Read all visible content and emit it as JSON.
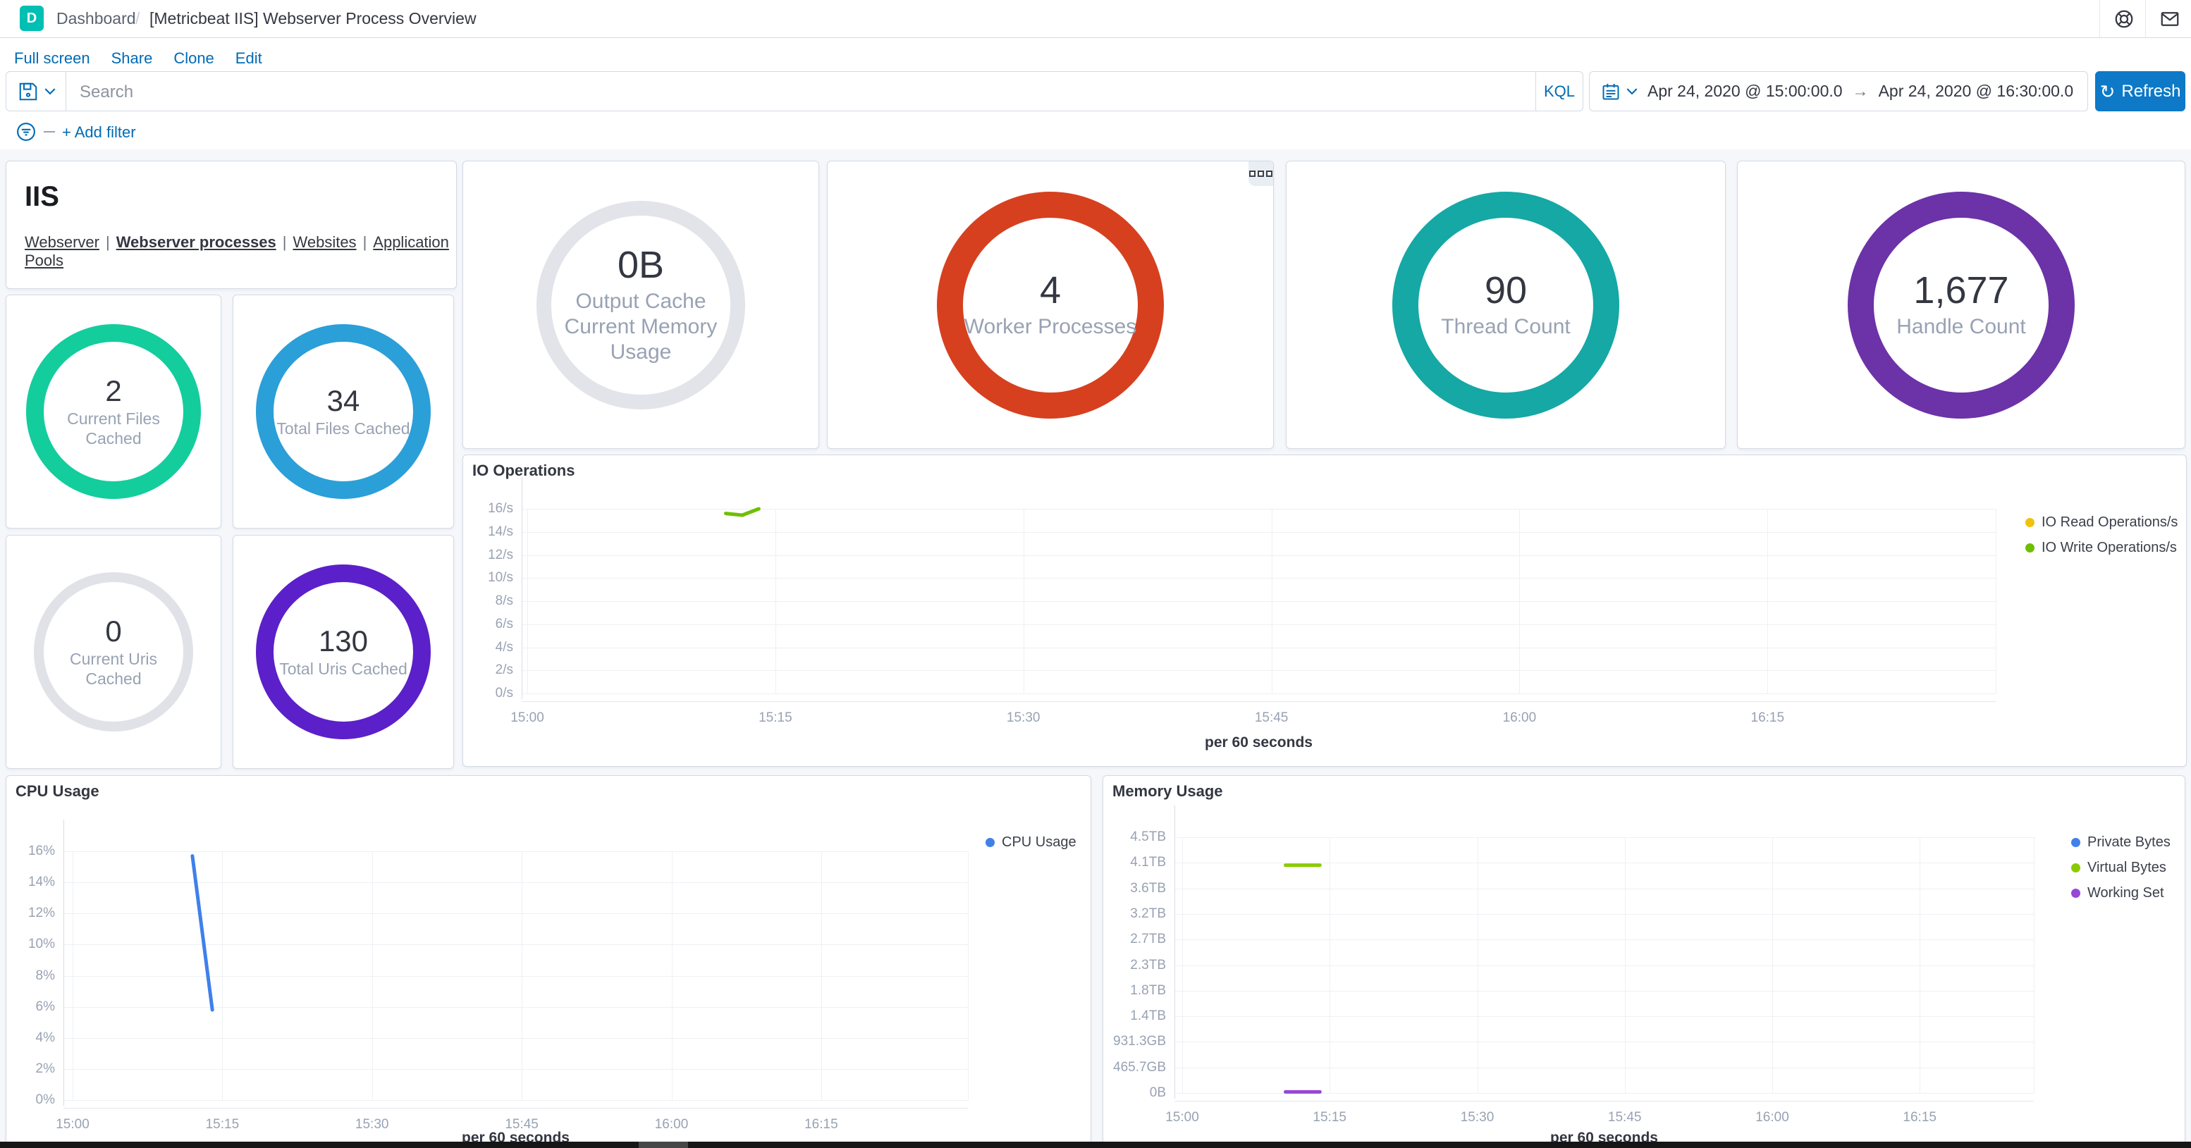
{
  "colors": {
    "primary": "#006BB4",
    "refresh_button": "#0d79c7",
    "logo_teal": "#00BFB3",
    "panel_border": "#D3DAE6",
    "page_background": "#F5F7FA"
  },
  "header": {
    "logo_letter": "D",
    "breadcrumb": "Dashboard",
    "breadcrumb_separator": "/",
    "page_title": "[Metricbeat IIS] Webserver Process Overview"
  },
  "toolbar": {
    "links": [
      "Full screen",
      "Share",
      "Clone",
      "Edit"
    ]
  },
  "query_bar": {
    "search_placeholder": "Search",
    "language_label": "KQL",
    "date_start": "Apr 24, 2020 @ 15:00:00.0",
    "date_arrow": "→",
    "date_end": "Apr 24, 2020 @ 16:30:00.0",
    "refresh_label": "Refresh",
    "add_filter_label": "+ Add filter"
  },
  "iis_panel": {
    "title": "IIS",
    "separator": "|",
    "links": [
      {
        "label": "Webserver",
        "current": false
      },
      {
        "label": "Webserver processes",
        "current": true
      },
      {
        "label": "Websites",
        "current": false
      },
      {
        "label": "Application Pools",
        "current": false
      }
    ]
  },
  "gauges": [
    {
      "id": "current-files-cached",
      "value": "2",
      "label": "Current Files Cached",
      "color": "#13cd9d"
    },
    {
      "id": "total-files-cached",
      "value": "34",
      "label": "Total Files Cached",
      "color": "#2b9fd8"
    },
    {
      "id": "current-uris-cached",
      "value": "0",
      "label": "Current Uris Cached",
      "color": "#e1e2e7"
    },
    {
      "id": "total-uris-cached",
      "value": "130",
      "label": "Total Uris Cached",
      "color": "#5b20c9"
    },
    {
      "id": "output-cache-current-memory-usage",
      "value": "0B",
      "label": "Output Cache Current Memory Usage",
      "color": "#e3e4e9"
    },
    {
      "id": "worker-processes",
      "value": "4",
      "label": "Worker Processes",
      "color": "#d6401f"
    },
    {
      "id": "thread-count",
      "value": "90",
      "label": "Thread Count",
      "color": "#15a8a5"
    },
    {
      "id": "handle-count",
      "value": "1,677",
      "label": "Handle Count",
      "color": "#6c32a7"
    }
  ],
  "chart_data": [
    {
      "type": "line",
      "title": "IO Operations",
      "xlabel": "per 60 seconds",
      "grid": true,
      "legend_position": "right",
      "x_axis": {
        "tick_labels": [
          "15:00",
          "15:15",
          "15:30",
          "15:45",
          "16:00",
          "16:15"
        ],
        "tick_minutes": [
          0,
          15,
          30,
          45,
          60,
          75
        ],
        "domain_minutes": [
          0,
          88.8
        ]
      },
      "y_axis": {
        "tick_labels": [
          "16/s",
          "14/s",
          "12/s",
          "10/s",
          "8/s",
          "6/s",
          "4/s",
          "2/s",
          "0/s"
        ],
        "top_value": 16,
        "bottom_value": 0
      },
      "legend": [
        {
          "label": "IO Read Operations/s",
          "color": "#f0c20c"
        },
        {
          "label": "IO Write Operations/s",
          "color": "#6fbf00"
        }
      ],
      "series": [
        {
          "name": "IO Read Operations/s",
          "color": "#f0c20c",
          "points": []
        },
        {
          "name": "IO Write Operations/s",
          "color": "#6fbf00",
          "points": [
            [
              12,
              15.6
            ],
            [
              13,
              15.45
            ],
            [
              14,
              16.0
            ]
          ]
        }
      ]
    },
    {
      "type": "line",
      "title": "CPU Usage",
      "xlabel": "per 60 seconds",
      "grid": true,
      "legend_position": "right",
      "x_axis": {
        "tick_labels": [
          "15:00",
          "15:15",
          "15:30",
          "15:45",
          "16:00",
          "16:15"
        ],
        "tick_minutes": [
          0,
          15,
          30,
          45,
          60,
          75
        ],
        "domain_minutes": [
          0,
          89.7
        ]
      },
      "y_axis": {
        "tick_labels": [
          "16%",
          "14%",
          "12%",
          "10%",
          "8%",
          "6%",
          "4%",
          "2%",
          "0%"
        ],
        "top_value": 16,
        "bottom_value": 0
      },
      "legend": [
        {
          "label": "CPU Usage",
          "color": "#3f80ea"
        }
      ],
      "series": [
        {
          "name": "CPU Usage",
          "color": "#3f80ea",
          "points": [
            [
              12,
              15.7
            ],
            [
              14,
              5.8
            ]
          ]
        }
      ]
    },
    {
      "type": "line",
      "title": "Memory Usage",
      "xlabel": "per 60 seconds",
      "grid": true,
      "legend_position": "right",
      "unit": "TB",
      "x_axis": {
        "tick_labels": [
          "15:00",
          "15:15",
          "15:30",
          "15:45",
          "16:00",
          "16:15"
        ],
        "tick_minutes": [
          0,
          15,
          30,
          45,
          60,
          75
        ],
        "domain_minutes": [
          0,
          86.6
        ]
      },
      "y_axis": {
        "tick_labels": [
          "4.5TB",
          "4.1TB",
          "3.6TB",
          "3.2TB",
          "2.7TB",
          "2.3TB",
          "1.8TB",
          "1.4TB",
          "931.3GB",
          "465.7GB",
          "0B"
        ],
        "top_value": 4.547,
        "bottom_value": 0
      },
      "legend": [
        {
          "label": "Private Bytes",
          "color": "#3f80ea"
        },
        {
          "label": "Virtual Bytes",
          "color": "#8acb00"
        },
        {
          "label": "Working Set",
          "color": "#9747d6"
        }
      ],
      "series": [
        {
          "name": "Private Bytes",
          "color": "#3f80ea",
          "points": []
        },
        {
          "name": "Virtual Bytes",
          "color": "#8acb00",
          "points": [
            [
              10.5,
              4.05
            ],
            [
              14,
              4.05
            ]
          ]
        },
        {
          "name": "Working Set",
          "color": "#9747d6",
          "points": [
            [
              10.5,
              0.02
            ],
            [
              14,
              0.02
            ]
          ]
        }
      ]
    }
  ]
}
